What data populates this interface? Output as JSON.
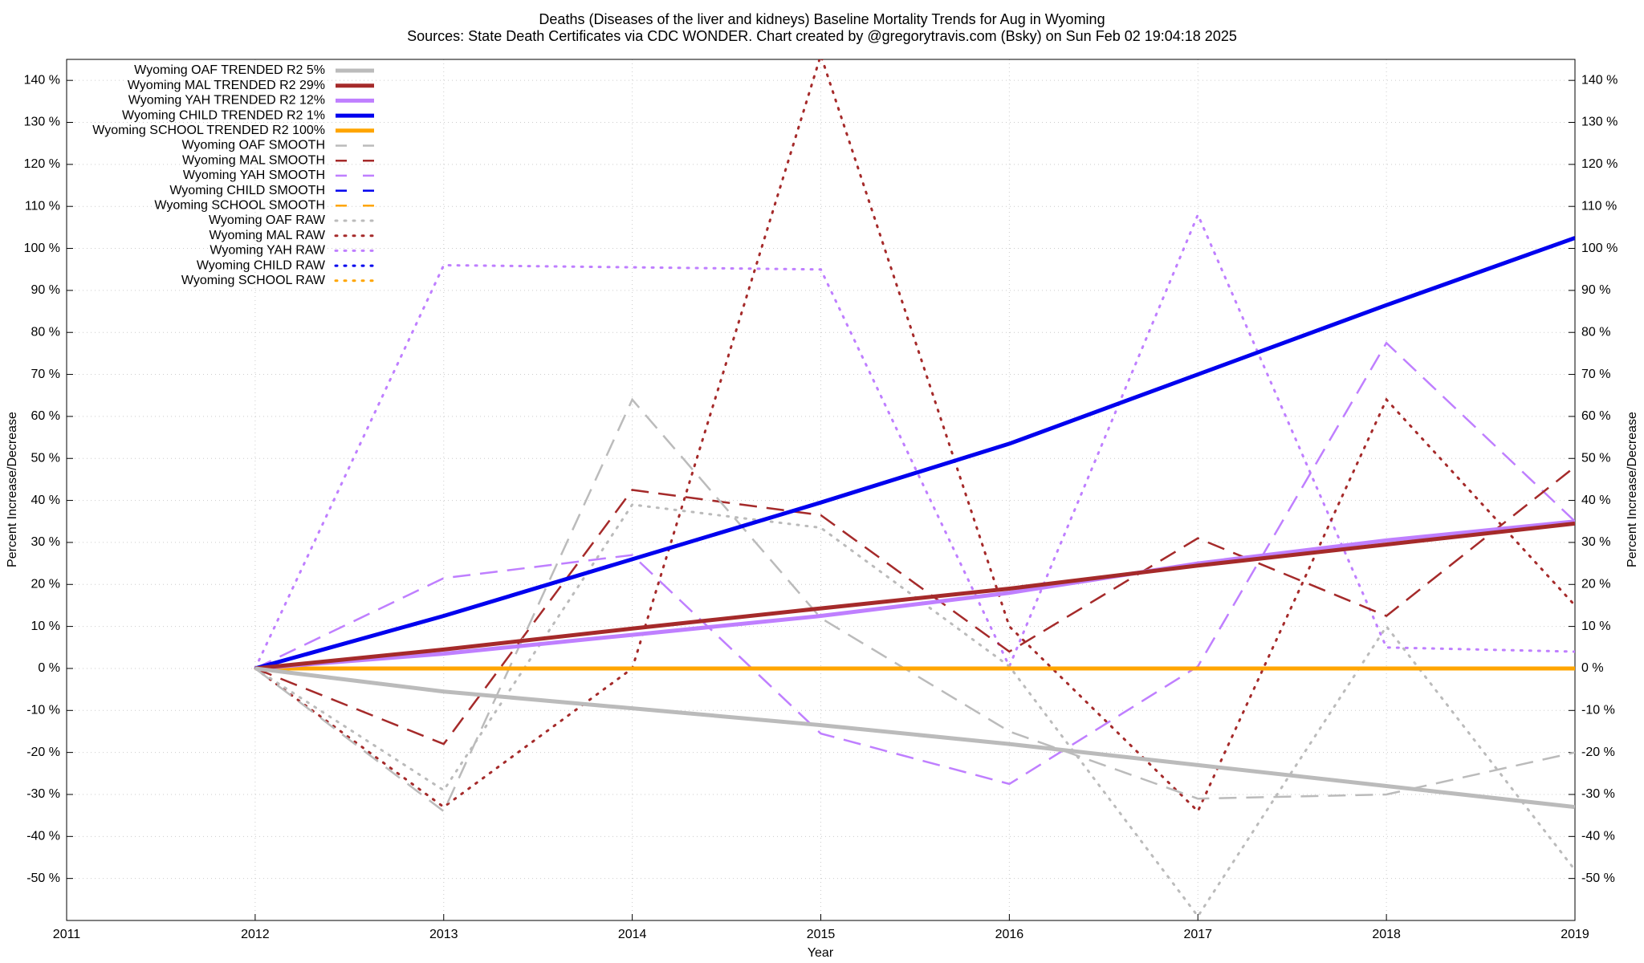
{
  "chart_data": {
    "type": "line",
    "title": "Deaths (Diseases of the liver and kidneys)  Baseline Mortality Trends for Aug in Wyoming",
    "subtitle": "Sources: State Death Certificates via CDC WONDER.               Chart created by @gregorytravis.com (Bsky) on Sun Feb 02 19:04:18 2025",
    "x_label": "Year",
    "y_label": "Percent Increase/Decrease",
    "y2_label": "Percent Increase/Decrease",
    "x": [
      2012,
      2013,
      2014,
      2015,
      2016,
      2017,
      2018,
      2019
    ],
    "xlim": [
      2011,
      2019
    ],
    "xticks": [
      2011,
      2012,
      2013,
      2014,
      2015,
      2016,
      2017,
      2018,
      2019
    ],
    "ylim": [
      -60,
      145
    ],
    "yticks": [
      {
        "value": -50,
        "label": "-50 %"
      },
      {
        "value": -40,
        "label": "-40 %"
      },
      {
        "value": -30,
        "label": "-30 %"
      },
      {
        "value": -20,
        "label": "-20 %"
      },
      {
        "value": -10,
        "label": "-10 %"
      },
      {
        "value": 0,
        "label": "0 %"
      },
      {
        "value": 10,
        "label": "10 %"
      },
      {
        "value": 20,
        "label": "20 %"
      },
      {
        "value": 30,
        "label": "30 %"
      },
      {
        "value": 40,
        "label": "40 %"
      },
      {
        "value": 50,
        "label": "50 %"
      },
      {
        "value": 60,
        "label": "60 %"
      },
      {
        "value": 70,
        "label": "70 %"
      },
      {
        "value": 80,
        "label": "80 %"
      },
      {
        "value": 90,
        "label": "90 %"
      },
      {
        "value": 100,
        "label": "100 %"
      },
      {
        "value": 110,
        "label": "110 %"
      },
      {
        "value": 120,
        "label": "120 %"
      },
      {
        "value": 130,
        "label": "130 %"
      },
      {
        "value": 140,
        "label": "140 %"
      }
    ],
    "grid": true,
    "legend": "upper left",
    "series": [
      {
        "name": "Wyoming OAF TRENDED R2  5%",
        "color": "#bbbbbb",
        "style": "solid",
        "values": [
          0,
          -5.5,
          -9.5,
          -13.5,
          -18,
          -23,
          -28,
          -33
        ]
      },
      {
        "name": "Wyoming MAL TRENDED R2  29%",
        "color": "#a52a2a",
        "style": "solid",
        "values": [
          0,
          4.5,
          9.5,
          14.3,
          19,
          24.5,
          29.5,
          34.5
        ]
      },
      {
        "name": "Wyoming YAH TRENDED R2  12%",
        "color": "#bf7fff",
        "style": "solid",
        "values": [
          0,
          3.5,
          8,
          12.5,
          18,
          25,
          30.5,
          35
        ]
      },
      {
        "name": "Wyoming CHILD TRENDED R2   1%",
        "color": "#0000ee",
        "style": "solid",
        "values": [
          0,
          12.5,
          26,
          39.5,
          53.5,
          70,
          86.5,
          102.5
        ]
      },
      {
        "name": "Wyoming SCHOOL TRENDED R2 100%",
        "color": "#ffa500",
        "style": "solid",
        "values": [
          0,
          0,
          0,
          0,
          0,
          0,
          0,
          0
        ]
      },
      {
        "name": "Wyoming OAF SMOOTH",
        "color": "#bbbbbb",
        "style": "dashed",
        "values": [
          0,
          -34,
          64,
          12,
          -15,
          -31,
          -30,
          -20
        ]
      },
      {
        "name": "Wyoming MAL SMOOTH",
        "color": "#a52a2a",
        "style": "dashed",
        "values": [
          0,
          -18,
          42.5,
          36.5,
          4,
          31,
          12.5,
          48
        ]
      },
      {
        "name": "Wyoming YAH SMOOTH",
        "color": "#bf7fff",
        "style": "dashed",
        "values": [
          0,
          21.5,
          27,
          -15.5,
          -27.5,
          0.5,
          77.5,
          35
        ]
      },
      {
        "name": "Wyoming CHILD SMOOTH",
        "color": "#0000ee",
        "style": "dashed",
        "values": [
          null,
          null,
          null,
          null,
          null,
          null,
          null,
          null
        ]
      },
      {
        "name": "Wyoming SCHOOL SMOOTH",
        "color": "#ffa500",
        "style": "dashed",
        "values": [
          0,
          0,
          0,
          0,
          0,
          0,
          0,
          0
        ]
      },
      {
        "name": "Wyoming OAF RAW",
        "color": "#bbbbbb",
        "style": "dotted",
        "values": [
          0,
          -29,
          39,
          33.5,
          0.5,
          -59,
          10,
          -48
        ]
      },
      {
        "name": "Wyoming MAL RAW",
        "color": "#a52a2a",
        "style": "dotted",
        "values": [
          0,
          -33,
          0,
          146,
          10,
          -34,
          64,
          15
        ]
      },
      {
        "name": "Wyoming YAH RAW",
        "color": "#bf7fff",
        "style": "dotted",
        "values": [
          0,
          96,
          95.5,
          95,
          0.5,
          108,
          5,
          4
        ]
      },
      {
        "name": "Wyoming CHILD RAW",
        "color": "#0000ee",
        "style": "dotted",
        "values": [
          null,
          null,
          null,
          null,
          null,
          null,
          null,
          null
        ]
      },
      {
        "name": "Wyoming SCHOOL RAW",
        "color": "#ffa500",
        "style": "dotted",
        "values": [
          0,
          0,
          0,
          0,
          0,
          0,
          0,
          0
        ]
      }
    ]
  }
}
